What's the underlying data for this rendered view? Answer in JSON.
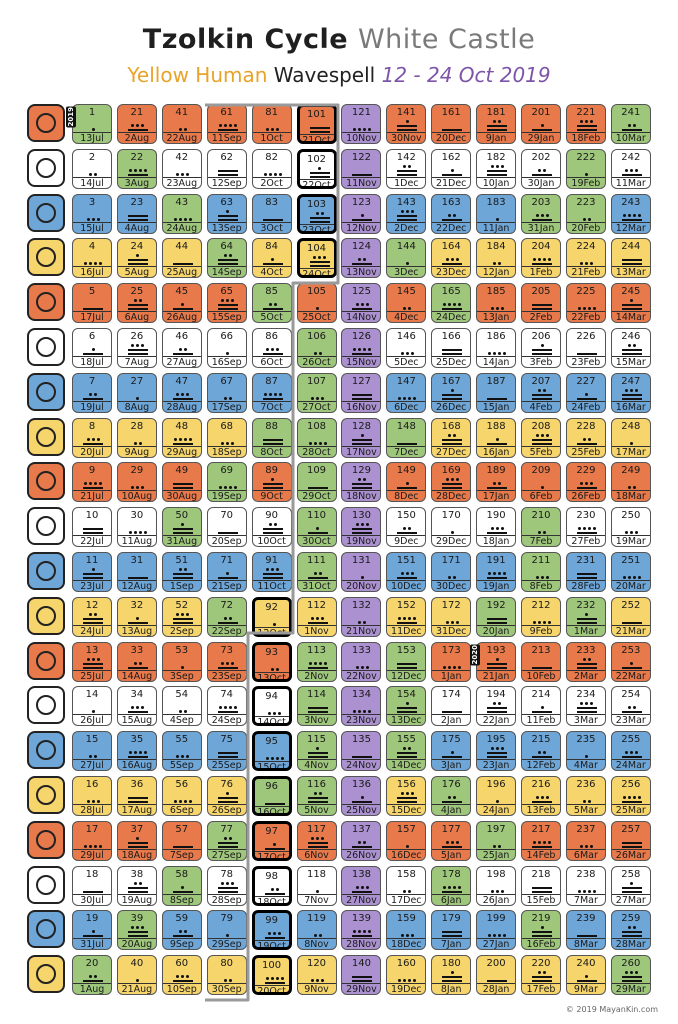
{
  "header": {
    "title_main": "Tzolkin Cycle",
    "title_castle": "White Castle",
    "subtitle_yellow": "Yellow Human",
    "subtitle_wave": "Wavespell",
    "subtitle_dates": "12 - 24 Oct 2019"
  },
  "footer": "© 2019 MayanKin.com",
  "year_marks": [
    {
      "label": "2019",
      "col": 0,
      "row": 0
    },
    {
      "label": "2020",
      "col": 9,
      "row": 12
    }
  ],
  "colors": {
    "red": "#e8794a",
    "white": "#ffffff",
    "blue": "#6ea6d8",
    "yellow": "#f6d56c",
    "green": "#9fc77c",
    "purple": "#ab91d0"
  },
  "glyphs": [
    {
      "name": "red-dragon-glyph",
      "color": "#e8794a"
    },
    {
      "name": "white-wind-glyph",
      "color": "#ffffff"
    },
    {
      "name": "blue-night-glyph",
      "color": "#6ea6d8"
    },
    {
      "name": "yellow-seed-glyph",
      "color": "#f6d56c"
    },
    {
      "name": "red-serpent-glyph",
      "color": "#e8794a"
    },
    {
      "name": "white-worldbridger-glyph",
      "color": "#ffffff"
    },
    {
      "name": "blue-hand-glyph",
      "color": "#6ea6d8"
    },
    {
      "name": "yellow-star-glyph",
      "color": "#f6d56c"
    },
    {
      "name": "red-moon-glyph",
      "color": "#e8794a"
    },
    {
      "name": "white-dog-glyph",
      "color": "#ffffff"
    },
    {
      "name": "blue-monkey-glyph",
      "color": "#6ea6d8"
    },
    {
      "name": "yellow-human-glyph",
      "color": "#f6d56c"
    },
    {
      "name": "red-skywalker-glyph",
      "color": "#e8794a"
    },
    {
      "name": "white-wizard-glyph",
      "color": "#ffffff"
    },
    {
      "name": "blue-eagle-glyph",
      "color": "#6ea6d8"
    },
    {
      "name": "yellow-warrior-glyph",
      "color": "#f6d56c"
    },
    {
      "name": "red-earth-glyph",
      "color": "#e8794a"
    },
    {
      "name": "white-mirror-glyph",
      "color": "#ffffff"
    },
    {
      "name": "blue-storm-glyph",
      "color": "#6ea6d8"
    },
    {
      "name": "yellow-sun-glyph",
      "color": "#f6d56c"
    }
  ],
  "dates": [
    [
      "13Jul",
      "2Aug",
      "22Aug",
      "11Sep",
      "1Oct",
      "21Oct",
      "10Nov",
      "30Nov",
      "20Dec",
      "9Jan",
      "29Jan",
      "18Feb",
      "10Mar"
    ],
    [
      "14Jul",
      "3Aug",
      "23Aug",
      "12Sep",
      "2Oct",
      "22Oct",
      "11Nov",
      "1Dec",
      "21Dec",
      "10Jan",
      "30Jan",
      "19Feb",
      "11Mar"
    ],
    [
      "15Jul",
      "4Aug",
      "24Aug",
      "13Sep",
      "3Oct",
      "23Oct",
      "12Nov",
      "2Dec",
      "22Dec",
      "11Jan",
      "31Jan",
      "20Feb",
      "12Mar"
    ],
    [
      "16Jul",
      "5Aug",
      "25Aug",
      "14Sep",
      "4Oct",
      "24Oct",
      "13Nov",
      "3Dec",
      "23Dec",
      "12Jan",
      "1Feb",
      "21Feb",
      "13Mar"
    ],
    [
      "17Jul",
      "6Aug",
      "26Aug",
      "15Sep",
      "5Oct",
      "25Oct",
      "14Nov",
      "4Dec",
      "24Dec",
      "13Jan",
      "2Feb",
      "22Feb",
      "14Mar"
    ],
    [
      "18Jul",
      "7Aug",
      "27Aug",
      "16Sep",
      "6Oct",
      "26Oct",
      "15Nov",
      "5Dec",
      "25Dec",
      "14Jan",
      "3Feb",
      "23Feb",
      "15Mar"
    ],
    [
      "19Jul",
      "8Aug",
      "28Aug",
      "17Sep",
      "7Oct",
      "27Oct",
      "16Nov",
      "6Dec",
      "26Dec",
      "15Jan",
      "4Feb",
      "24Feb",
      "16Mar"
    ],
    [
      "20Jul",
      "9Aug",
      "29Aug",
      "18Sep",
      "8Oct",
      "28Oct",
      "17Nov",
      "7Dec",
      "27Dec",
      "16Jan",
      "5Feb",
      "25Feb",
      "17Mar"
    ],
    [
      "21Jul",
      "10Aug",
      "30Aug",
      "19Sep",
      "9Oct",
      "29Oct",
      "18Nov",
      "8Dec",
      "28Dec",
      "17Jan",
      "6Feb",
      "26Feb",
      "18Mar"
    ],
    [
      "22Jul",
      "11Aug",
      "31Aug",
      "20Sep",
      "10Oct",
      "30Oct",
      "19Nov",
      "9Dec",
      "29Dec",
      "18Jan",
      "7Feb",
      "27Feb",
      "19Mar"
    ],
    [
      "23Jul",
      "12Aug",
      "1Sep",
      "21Sep",
      "11Oct",
      "31Oct",
      "20Nov",
      "10Dec",
      "30Dec",
      "19Jan",
      "8Feb",
      "28Feb",
      "20Mar"
    ],
    [
      "24Jul",
      "13Aug",
      "2Sep",
      "22Sep",
      "12Oct",
      "1Nov",
      "21Nov",
      "11Dec",
      "31Dec",
      "20Jan",
      "9Feb",
      "1Mar",
      "21Mar"
    ],
    [
      "25Jul",
      "14Aug",
      "3Sep",
      "23Sep",
      "13Oct",
      "2Nov",
      "22Nov",
      "12Dec",
      "1Jan",
      "21Jan",
      "10Feb",
      "2Mar",
      "22Mar"
    ],
    [
      "26Jul",
      "15Aug",
      "4Sep",
      "24Sep",
      "14Oct",
      "3Nov",
      "23Nov",
      "13Dec",
      "2Jan",
      "22Jan",
      "11Feb",
      "3Mar",
      "23Mar"
    ],
    [
      "27Jul",
      "16Aug",
      "5Sep",
      "25Sep",
      "15Oct",
      "4Nov",
      "24Nov",
      "14Dec",
      "3Jan",
      "23Jan",
      "12Feb",
      "4Mar",
      "24Mar"
    ],
    [
      "28Jul",
      "17Aug",
      "6Sep",
      "26Sep",
      "16Oct",
      "5Nov",
      "25Nov",
      "15Dec",
      "4Jan",
      "24Jan",
      "13Feb",
      "5Mar",
      "25Mar"
    ],
    [
      "29Jul",
      "18Aug",
      "7Sep",
      "27Sep",
      "17Oct",
      "6Nov",
      "26Nov",
      "16Dec",
      "5Jan",
      "25Jan",
      "14Feb",
      "6Mar",
      "26Mar"
    ],
    [
      "30Jul",
      "19Aug",
      "8Sep",
      "28Sep",
      "18Oct",
      "7Nov",
      "27Nov",
      "17Dec",
      "6Jan",
      "26Jan",
      "15Feb",
      "7Mar",
      "27Mar"
    ],
    [
      "31Jul",
      "20Aug",
      "9Sep",
      "29Sep",
      "19Oct",
      "8Nov",
      "28Nov",
      "18Dec",
      "7Jan",
      "27Jan",
      "16Feb",
      "8Mar",
      "28Mar"
    ],
    [
      "1Aug",
      "21Aug",
      "10Sep",
      "30Sep",
      "20Oct",
      "9Nov",
      "29Nov",
      "19Dec",
      "8Jan",
      "28Jan",
      "17Feb",
      "9Mar",
      "29Mar"
    ]
  ],
  "highlighted_kins": [
    92,
    93,
    94,
    95,
    96,
    97,
    98,
    99,
    100,
    101,
    102,
    103,
    104
  ],
  "green_kins": [
    1,
    20,
    22,
    39,
    43,
    50,
    58,
    64,
    69,
    72,
    77,
    85,
    88,
    96,
    106,
    107,
    108,
    109,
    110,
    111,
    113,
    114,
    115,
    116,
    126,
    144,
    148,
    153,
    154,
    155,
    165,
    176,
    178,
    192,
    197,
    203,
    210,
    211,
    219,
    222,
    223,
    232,
    241,
    260
  ],
  "purple_kins": [
    121,
    122,
    123,
    124,
    125,
    126,
    127,
    128,
    129,
    130,
    131,
    132,
    133,
    134,
    135,
    136,
    137,
    138,
    139,
    140
  ]
}
